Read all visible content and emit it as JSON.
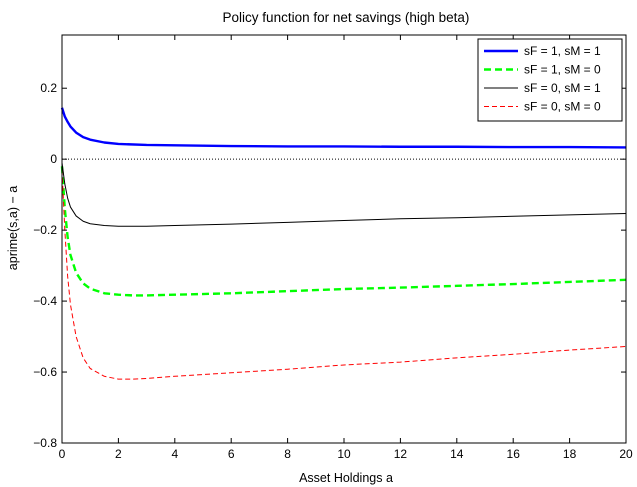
{
  "chart_data": {
    "type": "line",
    "title": "Policy function for net savings (high beta)",
    "xlabel": "Asset Holdings a",
    "ylabel": "aprime(s,a) − a",
    "xlim": [
      0,
      20
    ],
    "ylim": [
      -0.8,
      0.35
    ],
    "xticks": [
      0,
      2,
      4,
      6,
      8,
      10,
      12,
      14,
      16,
      18,
      20
    ],
    "yticks": [
      -0.8,
      -0.6,
      -0.4,
      -0.2,
      0,
      0.2
    ],
    "ytick_labels": [
      "−0.8",
      "−0.6",
      "−0.4",
      "−0.2",
      "0",
      "0.2"
    ],
    "grid": false,
    "zero_line": true,
    "legend_position": "top-right",
    "series": [
      {
        "name": "sF = 1, sM = 1",
        "color": "#0000ff",
        "style": "solid-thick",
        "x": [
          0,
          0.1,
          0.2,
          0.3,
          0.5,
          0.75,
          1,
          1.5,
          2,
          3,
          4,
          6,
          8,
          10,
          12,
          14,
          16,
          18,
          20
        ],
        "y": [
          0.145,
          0.12,
          0.105,
          0.092,
          0.075,
          0.062,
          0.055,
          0.047,
          0.043,
          0.04,
          0.039,
          0.037,
          0.036,
          0.036,
          0.035,
          0.035,
          0.034,
          0.034,
          0.033
        ]
      },
      {
        "name": "sF = 1, sM = 0",
        "color": "#00ff00",
        "style": "dashed-thick",
        "x": [
          0,
          0.1,
          0.2,
          0.3,
          0.5,
          0.75,
          1,
          1.5,
          2,
          2.5,
          3,
          4,
          6,
          8,
          10,
          12,
          14,
          16,
          18,
          20
        ],
        "y": [
          -0.02,
          -0.14,
          -0.22,
          -0.27,
          -0.32,
          -0.35,
          -0.365,
          -0.378,
          -0.382,
          -0.384,
          -0.384,
          -0.382,
          -0.378,
          -0.372,
          -0.366,
          -0.362,
          -0.357,
          -0.352,
          -0.346,
          -0.34
        ]
      },
      {
        "name": "sF = 0, sM = 1",
        "color": "#000000",
        "style": "solid-thin",
        "x": [
          0,
          0.1,
          0.2,
          0.3,
          0.5,
          0.75,
          1,
          1.5,
          2,
          3,
          4,
          6,
          8,
          10,
          12,
          14,
          16,
          18,
          20
        ],
        "y": [
          -0.01,
          -0.07,
          -0.11,
          -0.135,
          -0.16,
          -0.175,
          -0.182,
          -0.187,
          -0.189,
          -0.189,
          -0.187,
          -0.183,
          -0.178,
          -0.173,
          -0.168,
          -0.165,
          -0.161,
          -0.157,
          -0.153
        ]
      },
      {
        "name": "sF = 0, sM = 0",
        "color": "#ff0000",
        "style": "dashed-thin",
        "x": [
          0,
          0.1,
          0.2,
          0.3,
          0.5,
          0.75,
          1,
          1.5,
          2,
          2.5,
          3,
          4,
          6,
          8,
          10,
          12,
          14,
          16,
          18,
          20
        ],
        "y": [
          -0.03,
          -0.2,
          -0.33,
          -0.41,
          -0.5,
          -0.56,
          -0.59,
          -0.612,
          -0.62,
          -0.62,
          -0.618,
          -0.612,
          -0.602,
          -0.592,
          -0.58,
          -0.572,
          -0.56,
          -0.55,
          -0.538,
          -0.528
        ]
      }
    ]
  }
}
